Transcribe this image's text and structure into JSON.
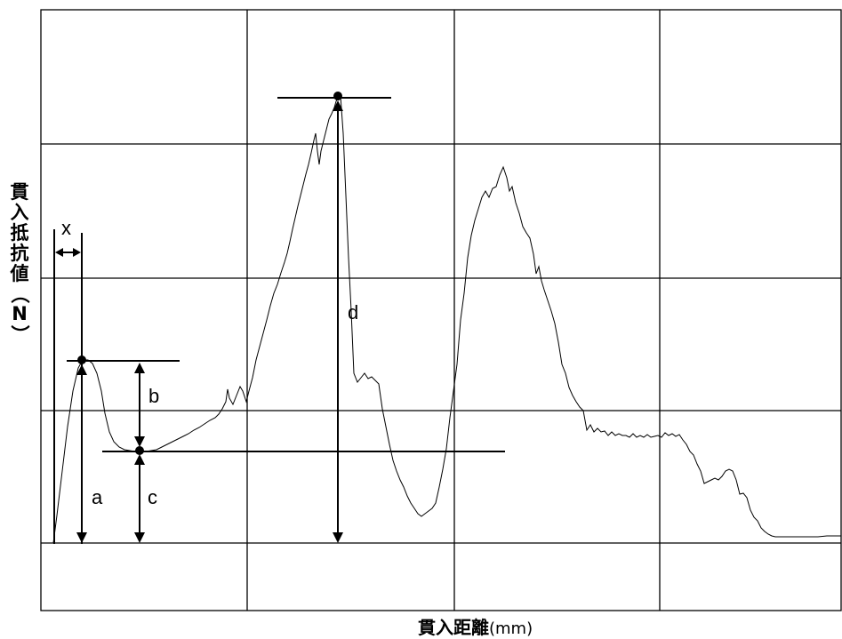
{
  "y_axis": {
    "chars": [
      "貫",
      "入",
      "抵",
      "抗",
      "値"
    ],
    "open_paren": "（",
    "unit": "N",
    "close_paren": "）"
  },
  "x_axis": {
    "label": "貫入距離",
    "unit": "(mm)"
  },
  "markers": {
    "x": "x",
    "a": "a",
    "b": "b",
    "c": "c",
    "d": "d"
  }
}
